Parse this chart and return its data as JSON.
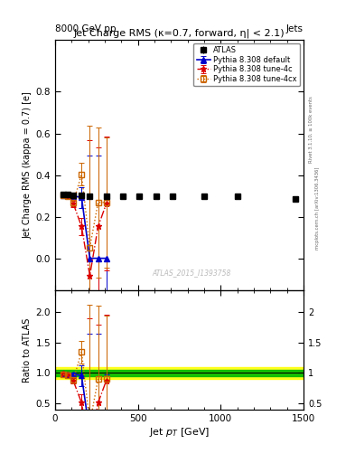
{
  "title": "Jet Charge RMS (κ=0.7, forward, η| < 2.1)",
  "header_left": "8000 GeV pp",
  "header_right": "Jets",
  "ylabel_main": "Jet Charge RMS (kappa = 0.7) [e]",
  "ylabel_ratio": "Ratio to ATLAS",
  "xlabel": "Jet p_{T} [GeV]",
  "watermark": "ATLAS_2015_I1393758",
  "atlas_x": [
    50,
    75,
    110,
    160,
    210,
    310,
    410,
    510,
    610,
    710,
    900,
    1100,
    1450
  ],
  "atlas_y": [
    0.31,
    0.308,
    0.305,
    0.302,
    0.3,
    0.3,
    0.3,
    0.3,
    0.3,
    0.3,
    0.3,
    0.298,
    0.285
  ],
  "atlas_yerr": [
    0.008,
    0.006,
    0.004,
    0.003,
    0.002,
    0.002,
    0.002,
    0.002,
    0.002,
    0.002,
    0.002,
    0.002,
    0.003
  ],
  "default_x": [
    50,
    75,
    110,
    160,
    210,
    260,
    310
  ],
  "default_y": [
    0.305,
    0.302,
    0.3,
    0.295,
    0.003,
    0.003,
    0.003
  ],
  "default_yerr": [
    0.01,
    0.008,
    0.006,
    0.05,
    0.49,
    0.49,
    0.29
  ],
  "tune4c_x": [
    50,
    75,
    110,
    160,
    210,
    260,
    310
  ],
  "tune4c_y": [
    0.305,
    0.3,
    0.265,
    0.155,
    -0.08,
    0.155,
    0.265
  ],
  "tune4c_yerr": [
    0.008,
    0.008,
    0.015,
    0.04,
    0.65,
    0.38,
    0.32
  ],
  "tune4cx_x": [
    50,
    75,
    110,
    160,
    210,
    260,
    310
  ],
  "tune4cx_y": [
    0.302,
    0.298,
    0.268,
    0.405,
    0.055,
    0.27,
    0.27
  ],
  "tune4cx_yerr": [
    0.008,
    0.008,
    0.015,
    0.055,
    0.58,
    0.36,
    0.31
  ],
  "ratio_default_x": [
    50,
    75,
    110,
    160,
    210,
    260,
    310
  ],
  "ratio_default_y": [
    0.985,
    0.98,
    0.98,
    0.96,
    0.01,
    0.01,
    0.01
  ],
  "ratio_default_yerr": [
    0.035,
    0.03,
    0.025,
    0.17,
    1.63,
    1.63,
    0.97
  ],
  "ratio_4c_x": [
    50,
    75,
    110,
    160,
    210,
    260,
    310
  ],
  "ratio_4c_y": [
    0.985,
    0.975,
    0.875,
    0.515,
    -0.27,
    0.515,
    0.88
  ],
  "ratio_4c_yerr": [
    0.026,
    0.026,
    0.05,
    0.135,
    2.16,
    1.27,
    1.07
  ],
  "ratio_4cx_x": [
    50,
    75,
    110,
    160,
    210,
    260,
    310
  ],
  "ratio_4cx_y": [
    0.975,
    0.965,
    0.885,
    1.345,
    0.183,
    0.9,
    0.9
  ],
  "ratio_4cx_yerr": [
    0.026,
    0.026,
    0.055,
    0.185,
    1.93,
    1.2,
    1.03
  ],
  "color_default": "#0000cc",
  "color_4c": "#dd0000",
  "color_4cx": "#cc6600",
  "color_atlas": "#000000",
  "color_band_green": "#00bb00",
  "color_band_yellow": "#ffff00",
  "xlim": [
    0,
    1500
  ],
  "ylim_main": [
    -0.15,
    1.05
  ],
  "ylim_ratio": [
    0.4,
    2.35
  ],
  "yticks_main": [
    0.0,
    0.2,
    0.4,
    0.6,
    0.8
  ],
  "yticks_ratio": [
    0.5,
    1.0,
    1.5,
    2.0
  ]
}
